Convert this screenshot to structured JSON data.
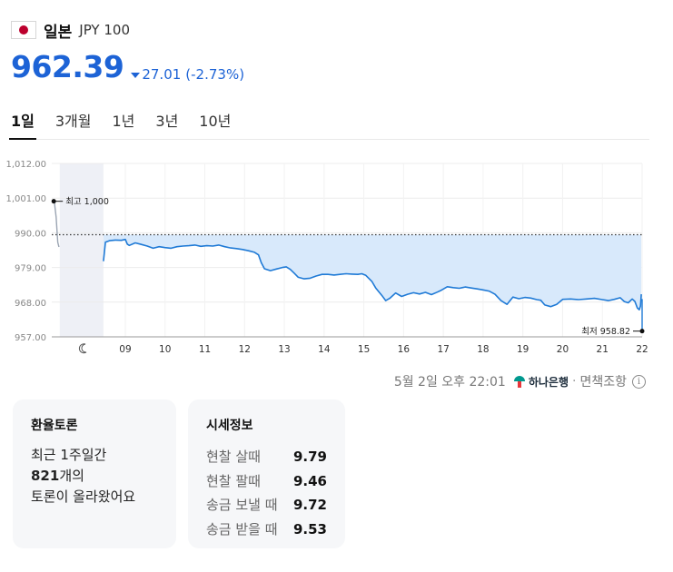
{
  "header": {
    "country": "일본",
    "code": "JPY 100",
    "flag": "japan-flag"
  },
  "quote": {
    "price": "962.39",
    "change": "27.01",
    "change_pct": "(-2.73%)",
    "direction": "down",
    "color": "#1d63d6"
  },
  "tabs": [
    {
      "label": "1일",
      "active": true
    },
    {
      "label": "3개월",
      "active": false
    },
    {
      "label": "1년",
      "active": false
    },
    {
      "label": "3년",
      "active": false
    },
    {
      "label": "10년",
      "active": false
    }
  ],
  "chart_data": {
    "type": "line",
    "ylim": [
      957,
      1012
    ],
    "y_ticks": [
      "1,012.00",
      "1,001.00",
      "990.00",
      "979.00",
      "968.00",
      "957.00"
    ],
    "y_tick_values": [
      1012,
      1001,
      990,
      979,
      968,
      957
    ],
    "x_ticks": [
      "09",
      "10",
      "11",
      "12",
      "13",
      "14",
      "15",
      "16",
      "17",
      "18",
      "19",
      "20",
      "21",
      "22"
    ],
    "x_tick_values": [
      9,
      10,
      11,
      12,
      13,
      14,
      15,
      16,
      17,
      18,
      19,
      20,
      21,
      22
    ],
    "xlim": [
      7.15,
      22
    ],
    "reference_value": 989.4,
    "high_label": "최고 1,000",
    "high_value": 1000,
    "low_label": "최저 958.82",
    "low_value": 958.82,
    "closed_icon": "moon-icon",
    "line_color": "#1f7ad6",
    "fill_color": "#d8e9fb",
    "pre_segment": [
      [
        7.2,
        1000.0
      ],
      [
        7.22,
        999.2
      ],
      [
        7.26,
        995.0
      ],
      [
        7.3,
        987.0
      ],
      [
        7.33,
        985.5
      ]
    ],
    "series": [
      [
        8.45,
        981.0
      ],
      [
        8.5,
        987.0
      ],
      [
        8.6,
        987.5
      ],
      [
        8.75,
        987.7
      ],
      [
        8.9,
        987.6
      ],
      [
        9.0,
        987.9
      ],
      [
        9.05,
        986.4
      ],
      [
        9.1,
        986.0
      ],
      [
        9.25,
        986.8
      ],
      [
        9.4,
        986.3
      ],
      [
        9.55,
        985.8
      ],
      [
        9.7,
        985.1
      ],
      [
        9.85,
        985.6
      ],
      [
        10.0,
        985.3
      ],
      [
        10.15,
        985.1
      ],
      [
        10.3,
        985.6
      ],
      [
        10.45,
        985.8
      ],
      [
        10.6,
        985.9
      ],
      [
        10.75,
        986.1
      ],
      [
        10.9,
        985.7
      ],
      [
        11.05,
        985.9
      ],
      [
        11.2,
        985.8
      ],
      [
        11.35,
        986.1
      ],
      [
        11.5,
        985.6
      ],
      [
        11.65,
        985.2
      ],
      [
        11.8,
        985.0
      ],
      [
        11.95,
        984.7
      ],
      [
        12.1,
        984.3
      ],
      [
        12.25,
        983.8
      ],
      [
        12.35,
        983.0
      ],
      [
        12.42,
        980.5
      ],
      [
        12.5,
        978.6
      ],
      [
        12.65,
        978.0
      ],
      [
        12.8,
        978.5
      ],
      [
        12.95,
        979.0
      ],
      [
        13.05,
        979.2
      ],
      [
        13.15,
        978.4
      ],
      [
        13.25,
        977.2
      ],
      [
        13.35,
        975.9
      ],
      [
        13.5,
        975.4
      ],
      [
        13.65,
        975.6
      ],
      [
        13.8,
        976.3
      ],
      [
        13.95,
        976.8
      ],
      [
        14.1,
        976.8
      ],
      [
        14.25,
        976.6
      ],
      [
        14.4,
        976.8
      ],
      [
        14.55,
        977.0
      ],
      [
        14.7,
        976.9
      ],
      [
        14.85,
        976.8
      ],
      [
        14.95,
        977.0
      ],
      [
        15.05,
        976.5
      ],
      [
        15.2,
        974.6
      ],
      [
        15.3,
        972.5
      ],
      [
        15.45,
        970.2
      ],
      [
        15.55,
        968.5
      ],
      [
        15.65,
        969.2
      ],
      [
        15.8,
        970.9
      ],
      [
        15.95,
        969.8
      ],
      [
        16.1,
        970.5
      ],
      [
        16.25,
        971.0
      ],
      [
        16.4,
        970.6
      ],
      [
        16.55,
        971.1
      ],
      [
        16.7,
        970.4
      ],
      [
        16.85,
        971.2
      ],
      [
        16.95,
        971.8
      ],
      [
        17.1,
        972.9
      ],
      [
        17.25,
        972.6
      ],
      [
        17.4,
        972.4
      ],
      [
        17.55,
        972.8
      ],
      [
        17.7,
        972.5
      ],
      [
        17.85,
        972.2
      ],
      [
        18.0,
        971.9
      ],
      [
        18.15,
        971.5
      ],
      [
        18.3,
        970.5
      ],
      [
        18.45,
        968.5
      ],
      [
        18.6,
        967.3
      ],
      [
        18.75,
        969.6
      ],
      [
        18.9,
        969.1
      ],
      [
        19.05,
        969.5
      ],
      [
        19.2,
        969.3
      ],
      [
        19.35,
        968.8
      ],
      [
        19.45,
        968.6
      ],
      [
        19.55,
        967.1
      ],
      [
        19.7,
        966.6
      ],
      [
        19.85,
        967.3
      ],
      [
        20.0,
        968.9
      ],
      [
        20.2,
        969.0
      ],
      [
        20.4,
        968.8
      ],
      [
        20.6,
        969.0
      ],
      [
        20.8,
        969.2
      ],
      [
        21.0,
        968.8
      ],
      [
        21.15,
        968.5
      ],
      [
        21.3,
        968.9
      ],
      [
        21.45,
        969.4
      ],
      [
        21.55,
        968.2
      ],
      [
        21.65,
        967.8
      ],
      [
        21.75,
        969.0
      ],
      [
        21.82,
        968.2
      ],
      [
        21.88,
        966.2
      ],
      [
        21.93,
        965.6
      ],
      [
        21.96,
        966.8
      ],
      [
        21.98,
        970.5
      ]
    ]
  },
  "source": {
    "datetime": "5월 2일 오후 22:01",
    "bank": "하나은행",
    "separator": "·",
    "link": "면책조항"
  },
  "discussion": {
    "title": "환율토론",
    "line1": "최근 1주일간",
    "count": "821",
    "count_suffix": "개의",
    "line3": "토론이 올라왔어요"
  },
  "market": {
    "title": "시세정보",
    "rows": [
      {
        "label": "현찰 살때",
        "value": "9.79"
      },
      {
        "label": "현찰 팔때",
        "value": "9.46"
      },
      {
        "label": "송금 보낼 때",
        "value": "9.72"
      },
      {
        "label": "송금 받을 때",
        "value": "9.53"
      }
    ]
  }
}
